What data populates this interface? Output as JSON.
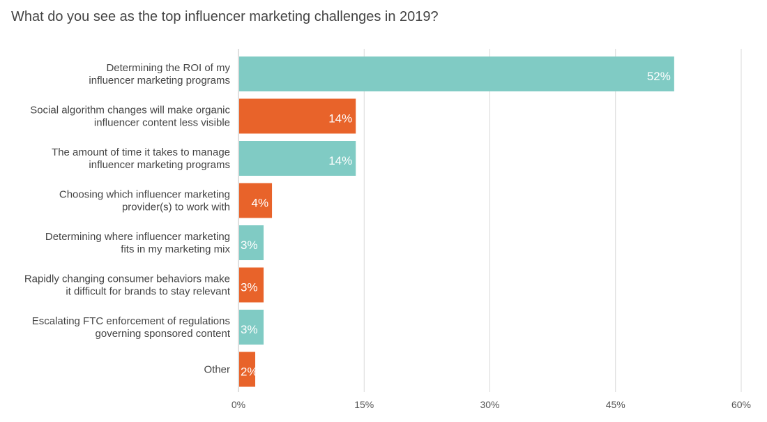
{
  "chart_data": {
    "type": "bar",
    "orientation": "horizontal",
    "title": "What do you see as the top influencer marketing challenges in 2019?",
    "categories": [
      [
        "Determining the ROI of my",
        "influencer marketing programs"
      ],
      [
        "Social algorithm changes will make organic",
        "influencer content less visible"
      ],
      [
        "The amount of time it takes to manage",
        "influencer marketing programs"
      ],
      [
        "Choosing which influencer marketing",
        "provider(s) to work with"
      ],
      [
        "Determining where influencer marketing",
        "fits in my marketing mix"
      ],
      [
        "Rapidly changing consumer behaviors make",
        "it difficult for brands to stay relevant"
      ],
      [
        "Escalating FTC enforcement of regulations",
        "governing sponsored content"
      ],
      [
        "Other"
      ]
    ],
    "values": [
      52,
      14,
      14,
      4,
      3,
      3,
      3,
      2
    ],
    "data_labels": [
      "52%",
      "14%",
      "14%",
      "4%",
      "3%",
      "3%",
      "3%",
      "2%"
    ],
    "bar_colors": [
      "#80cbc4",
      "#e8632a",
      "#80cbc4",
      "#e8632a",
      "#80cbc4",
      "#e8632a",
      "#80cbc4",
      "#e8632a"
    ],
    "xlim": [
      0,
      60
    ],
    "xticks": [
      0,
      15,
      30,
      45,
      60
    ],
    "xtick_labels": [
      "0%",
      "15%",
      "30%",
      "45%",
      "60%"
    ],
    "grid": true,
    "grid_color": "#d9d9d9",
    "xlabel": "",
    "ylabel": ""
  }
}
